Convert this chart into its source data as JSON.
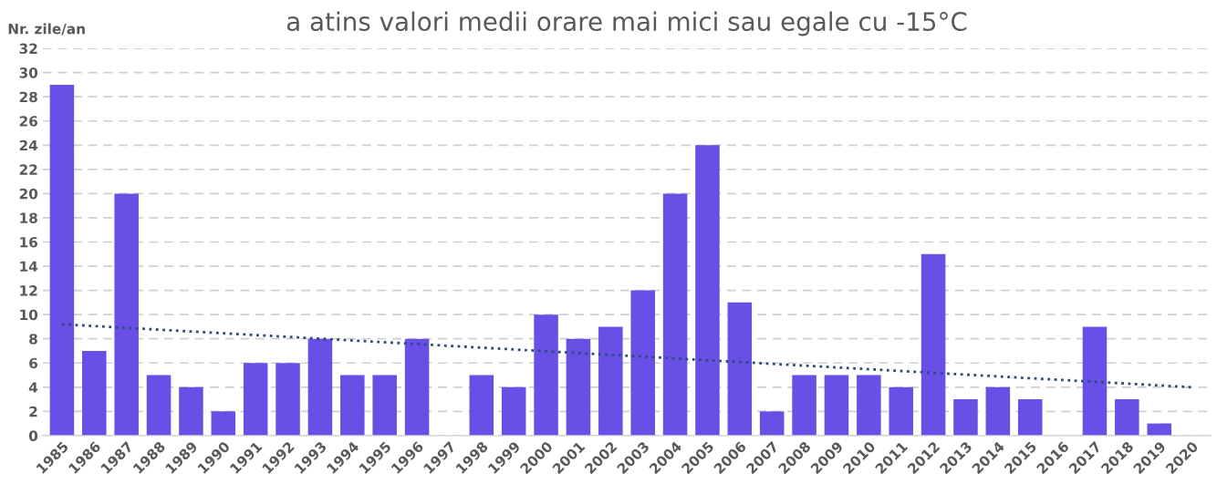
{
  "chart_data": {
    "type": "bar",
    "title": "a atins valori medii orare mai mici sau egale cu -15°C",
    "ylabel": "Nr. zile/an",
    "categories": [
      "1985",
      "1986",
      "1987",
      "1988",
      "1989",
      "1990",
      "1991",
      "1992",
      "1993",
      "1994",
      "1995",
      "1996",
      "1997",
      "1998",
      "1999",
      "2000",
      "2001",
      "2002",
      "2003",
      "2004",
      "2005",
      "2006",
      "2007",
      "2008",
      "2009",
      "2010",
      "2011",
      "2012",
      "2013",
      "2014",
      "2015",
      "2016",
      "2017",
      "2018",
      "2019",
      "2020"
    ],
    "series": [
      {
        "color": "#6a4fe6",
        "values": [
          29,
          7,
          20,
          5,
          4,
          2,
          6,
          6,
          8,
          5,
          5,
          8,
          0,
          5,
          4,
          10,
          8,
          9,
          12,
          20,
          24,
          11,
          2,
          5,
          5,
          5,
          4,
          15,
          3,
          4,
          3,
          0,
          9,
          3,
          1,
          0
        ]
      },
      {
        "type": "line",
        "color": "#2e4a7a",
        "line_style": "dotted",
        "values": [
          9.2,
          null,
          null,
          null,
          null,
          null,
          null,
          null,
          null,
          null,
          null,
          null,
          null,
          null,
          null,
          null,
          null,
          null,
          null,
          null,
          null,
          null,
          null,
          null,
          null,
          null,
          null,
          null,
          null,
          null,
          null,
          null,
          null,
          null,
          null,
          4.0
        ]
      }
    ],
    "ylim": [
      0,
      32
    ],
    "yticks": [
      0,
      2,
      4,
      6,
      8,
      10,
      12,
      14,
      16,
      18,
      20,
      22,
      24,
      26,
      28,
      30,
      32
    ],
    "grid": "y",
    "legend": false
  }
}
